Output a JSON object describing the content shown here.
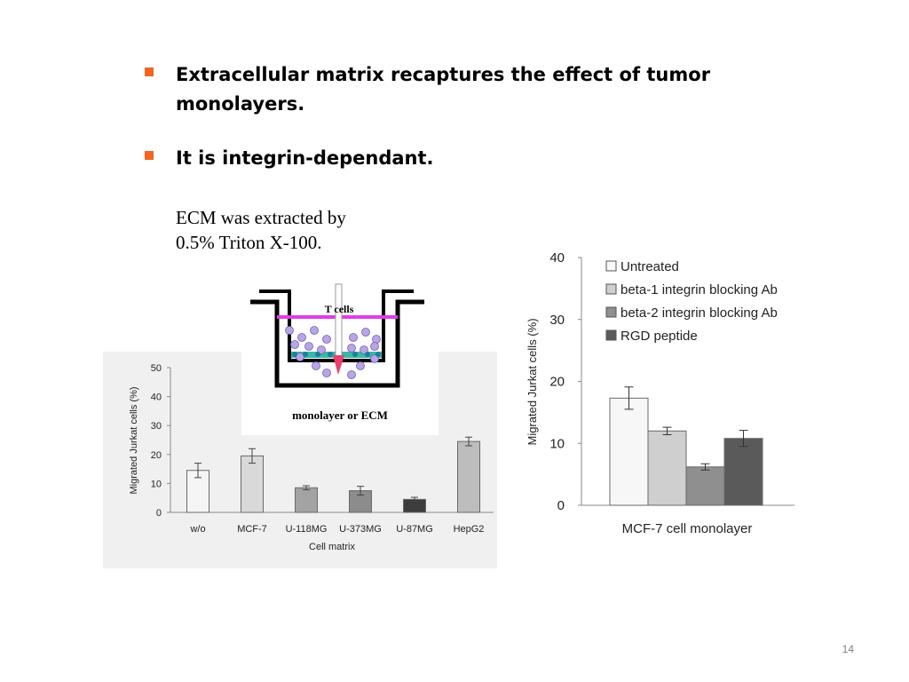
{
  "slide": {
    "bullets": [
      "Extracellular matrix recaptures the effect of tumor monolayers.",
      "It is integrin-dependant."
    ],
    "note_line1": "ECM was extracted by",
    "note_line2": "0.5% Triton X-100.",
    "page_number": "14",
    "bullet_color": "#f26522"
  },
  "schematic": {
    "top_label": "T cells",
    "bottom_label": "monolayer or ECM",
    "membrane_color": "#e23ce6",
    "cell_color": "#b9a5e6",
    "arrow_color": "#e8406f"
  },
  "chart_data": [
    {
      "type": "bar",
      "categories": [
        "w/o",
        "MCF-7",
        "U-118MG",
        "U-373MG",
        "U-87MG",
        "HepG2"
      ],
      "values": [
        14.5,
        19.5,
        8.5,
        7.5,
        4.5,
        24.5
      ],
      "errors": [
        2.5,
        2.5,
        0.7,
        1.5,
        0.7,
        1.5
      ],
      "bar_colors": [
        "#f5f5f5",
        "#d9d9d9",
        "#a3a3a3",
        "#8c8c8c",
        "#3c3c3c",
        "#bdbdbd"
      ],
      "title": "",
      "xlabel": "Cell matrix",
      "ylabel": "Migrated Jurkat cells (%)",
      "ylim": [
        0,
        50
      ],
      "yticks": [
        0,
        10,
        20,
        30,
        40,
        50
      ],
      "grid": false
    },
    {
      "type": "bar",
      "categories": [
        "MCF-7 cell monolayer"
      ],
      "series": [
        {
          "name": "Untreated",
          "values": [
            17.3
          ],
          "errors": [
            1.8
          ],
          "color": "#f7f7f7"
        },
        {
          "name": "beta-1 integrin blocking Ab",
          "values": [
            12.0
          ],
          "errors": [
            0.6
          ],
          "color": "#cfcfcf"
        },
        {
          "name": "beta-2 integrin blocking Ab",
          "values": [
            6.2
          ],
          "errors": [
            0.5
          ],
          "color": "#8f8f8f"
        },
        {
          "name": "RGD peptide",
          "values": [
            10.8
          ],
          "errors": [
            1.3
          ],
          "color": "#5a5a5a"
        }
      ],
      "title": "",
      "xlabel": "MCF-7 cell monolayer",
      "ylabel": "Migrated Jurkat cells (%)",
      "ylim": [
        0,
        40
      ],
      "yticks": [
        0,
        10,
        20,
        30,
        40
      ],
      "legend": "top-right",
      "grid": false
    }
  ]
}
